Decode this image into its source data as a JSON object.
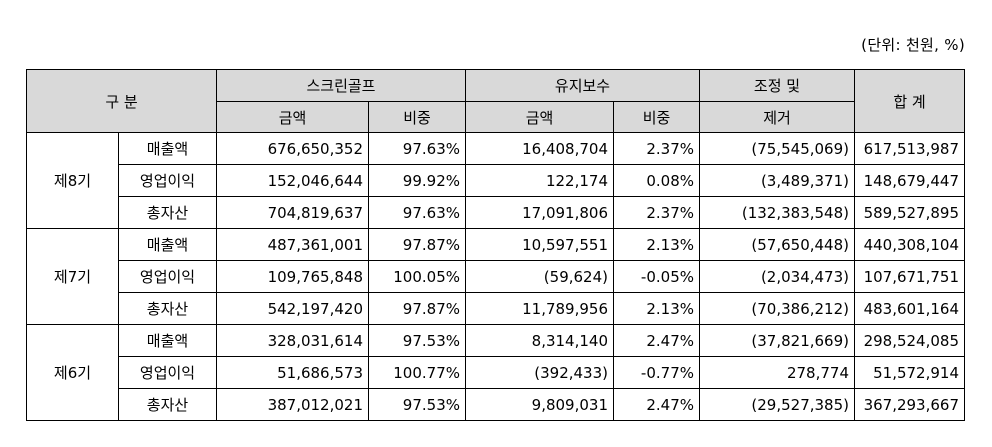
{
  "unit_note": "(단위: 천원, %)",
  "header": {
    "category": "구 분",
    "screen_golf": "스크린골프",
    "maintenance": "유지보수",
    "adjust_line1": "조정 및",
    "adjust_line2": "제거",
    "total": "합 계",
    "amount": "금액",
    "ratio": "비중"
  },
  "periods": [
    {
      "label": "제8기",
      "rows": [
        {
          "item": "매출액",
          "sg_amount": "676,650,352",
          "sg_ratio": "97.63%",
          "mt_amount": "16,408,704",
          "mt_ratio": "2.37%",
          "adjust": "(75,545,069)",
          "total": "617,513,987"
        },
        {
          "item": "영업이익",
          "sg_amount": "152,046,644",
          "sg_ratio": "99.92%",
          "mt_amount": "122,174",
          "mt_ratio": "0.08%",
          "adjust": "(3,489,371)",
          "total": "148,679,447"
        },
        {
          "item": "총자산",
          "sg_amount": "704,819,637",
          "sg_ratio": "97.63%",
          "mt_amount": "17,091,806",
          "mt_ratio": "2.37%",
          "adjust": "(132,383,548)",
          "total": "589,527,895"
        }
      ]
    },
    {
      "label": "제7기",
      "rows": [
        {
          "item": "매출액",
          "sg_amount": "487,361,001",
          "sg_ratio": "97.87%",
          "mt_amount": "10,597,551",
          "mt_ratio": "2.13%",
          "adjust": "(57,650,448)",
          "total": "440,308,104"
        },
        {
          "item": "영업이익",
          "sg_amount": "109,765,848",
          "sg_ratio": "100.05%",
          "mt_amount": "(59,624)",
          "mt_ratio": "-0.05%",
          "adjust": "(2,034,473)",
          "total": "107,671,751"
        },
        {
          "item": "총자산",
          "sg_amount": "542,197,420",
          "sg_ratio": "97.87%",
          "mt_amount": "11,789,956",
          "mt_ratio": "2.13%",
          "adjust": "(70,386,212)",
          "total": "483,601,164"
        }
      ]
    },
    {
      "label": "제6기",
      "rows": [
        {
          "item": "매출액",
          "sg_amount": "328,031,614",
          "sg_ratio": "97.53%",
          "mt_amount": "8,314,140",
          "mt_ratio": "2.47%",
          "adjust": "(37,821,669)",
          "total": "298,524,085"
        },
        {
          "item": "영업이익",
          "sg_amount": "51,686,573",
          "sg_ratio": "100.77%",
          "mt_amount": "(392,433)",
          "mt_ratio": "-0.77%",
          "adjust": "278,774",
          "total": "51,572,914"
        },
        {
          "item": "총자산",
          "sg_amount": "387,012,021",
          "sg_ratio": "97.53%",
          "mt_amount": "9,809,031",
          "mt_ratio": "2.47%",
          "adjust": "(29,527,385)",
          "total": "367,293,667"
        }
      ]
    }
  ]
}
